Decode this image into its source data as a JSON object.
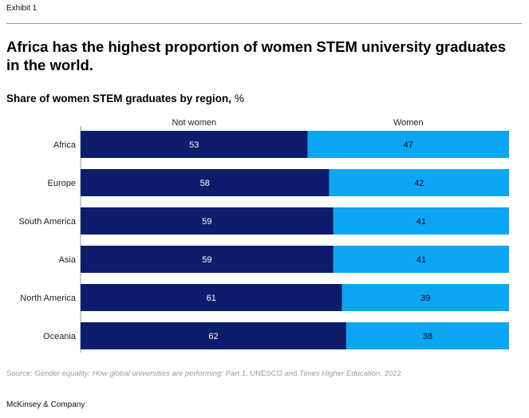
{
  "header": {
    "exhibit": "Exhibit 1",
    "title": "Africa has the highest proportion of women STEM university graduates in the world.",
    "subtitle": "Share of women STEM graduates by region,",
    "subtitle_unit": "%"
  },
  "chart_data": {
    "type": "bar",
    "orientation": "horizontal",
    "stacked": true,
    "title": "Share of women STEM graduates by region, %",
    "categories": [
      "Africa",
      "Europe",
      "South America",
      "Asia",
      "North America",
      "Oceania"
    ],
    "series": [
      {
        "name": "Not women",
        "color": "#0d1d6b",
        "label_color": "#ffffff",
        "values": [
          53,
          58,
          59,
          59,
          61,
          62
        ]
      },
      {
        "name": "Women",
        "color": "#0ea5f2",
        "label_color": "#0a0a2a",
        "values": [
          47,
          42,
          41,
          41,
          39,
          38
        ]
      }
    ],
    "xlim": [
      0,
      100
    ],
    "legend_position": "top"
  },
  "footer": {
    "source_prefix": "Source: ",
    "source_title_1": "Gender equality: How global universities are performing: Part 1",
    "source_mid": ", UNESCO and ",
    "source_title_2": "Times Higher Education",
    "source_suffix": ", 2022",
    "brand": "McKinsey & Company"
  }
}
